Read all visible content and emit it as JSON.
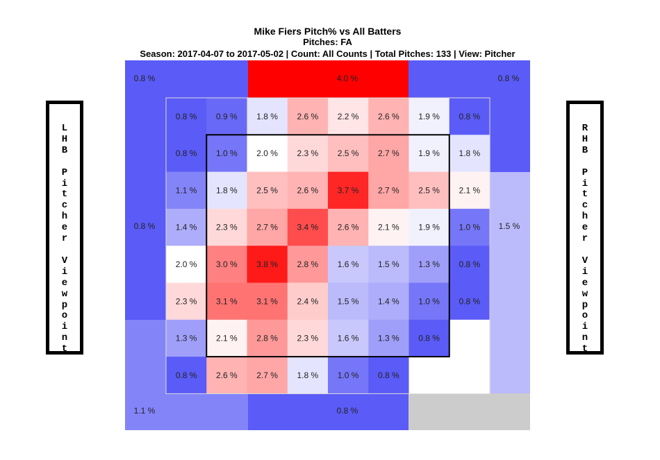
{
  "title": "Mike Fiers Pitch% vs All Batters",
  "subtitle": "Pitches: FA",
  "info": "Season: 2017-04-07 to 2017-05-02 | Count: All Counts | Total Pitches: 133 | View: Pitcher",
  "left_label": "LHB Pitcher Viewpoint",
  "right_label": "RHB Pitcher Viewpoint",
  "colors": {
    "low": "#5b5bf7",
    "mid": "#ffffff",
    "high": "#ff0000",
    "no_data": "#cccccc"
  },
  "chart_data": {
    "type": "heatmap",
    "unit": "%",
    "value_scale": [
      0.8,
      2.0,
      4.0
    ],
    "outer_zones": [
      {
        "id": "top-left",
        "value": 0.8,
        "label": "0.8 %"
      },
      {
        "id": "top-center",
        "value": 4.0,
        "label": "4.0 %"
      },
      {
        "id": "top-right",
        "value": 0.8,
        "label": "0.8 %"
      },
      {
        "id": "left-upper",
        "value": 0.8,
        "label": "0.8 %"
      },
      {
        "id": "left-lower",
        "value": 1.1,
        "label": ""
      },
      {
        "id": "right-upper",
        "value": 0.8,
        "label": ""
      },
      {
        "id": "right-lower",
        "value": 1.5,
        "label": "1.5 %"
      },
      {
        "id": "bottom-left",
        "value": 1.1,
        "label": "1.1 %"
      },
      {
        "id": "bottom-center",
        "value": 0.8,
        "label": "0.8 %"
      },
      {
        "id": "bottom-right",
        "value": null,
        "label": ""
      }
    ],
    "grid": [
      [
        0.8,
        0.9,
        1.8,
        2.6,
        2.2,
        2.6,
        1.9,
        0.8
      ],
      [
        0.8,
        1.0,
        2.0,
        2.3,
        2.5,
        2.7,
        1.9,
        1.8
      ],
      [
        1.1,
        1.8,
        2.5,
        2.6,
        3.7,
        2.7,
        2.5,
        2.1
      ],
      [
        1.4,
        2.3,
        2.7,
        3.4,
        2.6,
        2.1,
        1.9,
        1.0
      ],
      [
        2.0,
        3.0,
        3.8,
        2.8,
        1.6,
        1.5,
        1.3,
        0.8
      ],
      [
        2.3,
        3.1,
        3.1,
        2.4,
        1.5,
        1.4,
        1.0,
        0.8
      ],
      [
        1.3,
        2.1,
        2.8,
        2.3,
        1.6,
        1.3,
        0.8,
        null
      ],
      [
        0.8,
        2.6,
        2.7,
        1.8,
        1.0,
        0.8,
        null,
        null
      ]
    ],
    "grid_labels": [
      [
        "0.8 %",
        "0.9 %",
        "1.8 %",
        "2.6 %",
        "2.2 %",
        "2.6 %",
        "1.9 %",
        "0.8 %"
      ],
      [
        "0.8 %",
        "1.0 %",
        "2.0 %",
        "2.3 %",
        "2.5 %",
        "2.7 %",
        "1.9 %",
        "1.8 %"
      ],
      [
        "1.1 %",
        "1.8 %",
        "2.5 %",
        "2.6 %",
        "3.7 %",
        "2.7 %",
        "2.5 %",
        "2.1 %"
      ],
      [
        "1.4 %",
        "2.3 %",
        "2.7 %",
        "3.4 %",
        "2.6 %",
        "2.1 %",
        "1.9 %",
        "1.0 %"
      ],
      [
        "2.0 %",
        "3.0 %",
        "3.8 %",
        "2.8 %",
        "1.6 %",
        "1.5 %",
        "1.3 %",
        "0.8 %"
      ],
      [
        "2.3 %",
        "3.1 %",
        "3.1 %",
        "2.4 %",
        "1.5 %",
        "1.4 %",
        "1.0 %",
        "0.8 %"
      ],
      [
        "1.3 %",
        "2.1 %",
        "2.8 %",
        "2.3 %",
        "1.6 %",
        "1.3 %",
        "0.8 %",
        ""
      ],
      [
        "0.8 %",
        "2.6 %",
        "2.7 %",
        "1.8 %",
        "1.0 %",
        "0.8 %",
        "",
        ""
      ]
    ],
    "strike_zone": {
      "rows": [
        1,
        6
      ],
      "cols": [
        1,
        6
      ]
    }
  }
}
